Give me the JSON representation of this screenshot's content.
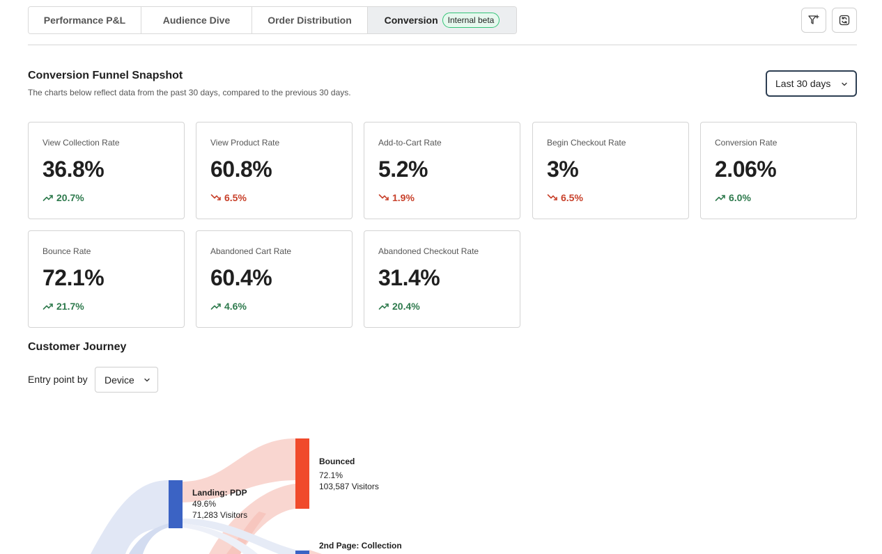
{
  "tabs": [
    {
      "label": "Performance P&L"
    },
    {
      "label": "Audience Dive"
    },
    {
      "label": "Order Distribution"
    },
    {
      "label": "Conversion",
      "badge": "Internal beta"
    }
  ],
  "toolbar": {
    "filter_icon": "filter-plus-icon",
    "refresh_icon": "refresh-icon"
  },
  "snapshot": {
    "title": "Conversion Funnel Snapshot",
    "subtitle": "The charts below reflect data from the past 30 days, compared to the previous 30 days.",
    "date_range": "Last 30 days"
  },
  "metrics": [
    {
      "label": "View Collection Rate",
      "value": "36.8%",
      "delta": "20.7%",
      "trend": "up"
    },
    {
      "label": "View Product Rate",
      "value": "60.8%",
      "delta": "6.5%",
      "trend": "down"
    },
    {
      "label": "Add-to-Cart Rate",
      "value": "5.2%",
      "delta": "1.9%",
      "trend": "down"
    },
    {
      "label": "Begin Checkout Rate",
      "value": "3%",
      "delta": "6.5%",
      "trend": "down"
    },
    {
      "label": "Conversion Rate",
      "value": "2.06%",
      "delta": "6.0%",
      "trend": "up"
    },
    {
      "label": "Bounce Rate",
      "value": "72.1%",
      "delta": "21.7%",
      "trend": "up"
    },
    {
      "label": "Abandoned Cart Rate",
      "value": "60.4%",
      "delta": "4.6%",
      "trend": "up"
    },
    {
      "label": "Abandoned Checkout Rate",
      "value": "31.4%",
      "delta": "20.4%",
      "trend": "up"
    }
  ],
  "journey": {
    "title": "Customer Journey",
    "entry_label": "Entry point by",
    "entry_value": "Device",
    "nodes": [
      {
        "title": "Landing: PDP",
        "pct": "49.6%",
        "visitors": "71,283 Visitors"
      },
      {
        "title": "Bounced",
        "pct": "72.1%",
        "visitors": "103,587 Visitors"
      },
      {
        "title": "2nd Page: Collection"
      }
    ]
  },
  "colors": {
    "up": "#2e7a4d",
    "down": "#c8412b",
    "node_blue": "#3b63c4",
    "node_red": "#f04a2b",
    "flow_blue": "#e1e7f5",
    "flow_red": "#f9d6d0",
    "badge_green": "#33c477"
  }
}
